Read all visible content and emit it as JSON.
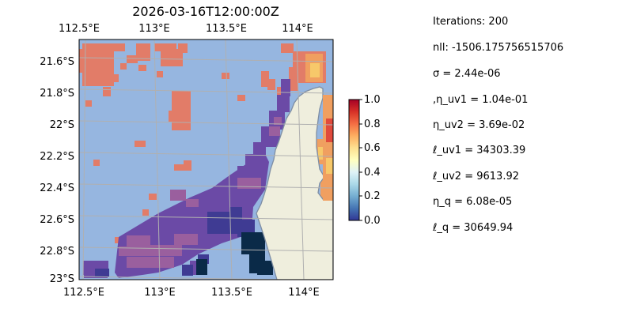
{
  "figure": {
    "title": "2026-03-16T12:00:00Z",
    "top_longitude_ticks": [
      "112.5°E",
      "113°E",
      "113.5°E",
      "114°E"
    ],
    "bottom_longitude_ticks": [
      "112.5°E",
      "113°E",
      "113.5°E",
      "114°E"
    ],
    "latitude_ticks": [
      "21.6°S",
      "21.8°S",
      "22°S",
      "22.2°S",
      "22.4°S",
      "22.6°S",
      "22.8°S",
      "23°S"
    ],
    "colorbar": {
      "ticks": [
        "0.0",
        "0.2",
        "0.4",
        "0.6",
        "0.8",
        "1.0"
      ],
      "range": [
        0.0,
        1.0
      ],
      "colormap": "RdYlBu_r"
    },
    "colors": {
      "ocean": "#96b6e0",
      "land": "#efeedd",
      "coast": "#7f8ea3",
      "grid": "#b0b0b0"
    }
  },
  "parameters": [
    "Iterations: 200",
    "nll: -1506.175756515706",
    "σ = 2.44e-06",
    ",η_uv1 = 1.04e-01",
    "η_uv2 = 3.69e-02",
    "ℓ_uv1 = 34303.39",
    "ℓ_uv2 = 9613.92",
    "η_q = 6.08e-05",
    "ℓ_q = 30649.94"
  ]
}
